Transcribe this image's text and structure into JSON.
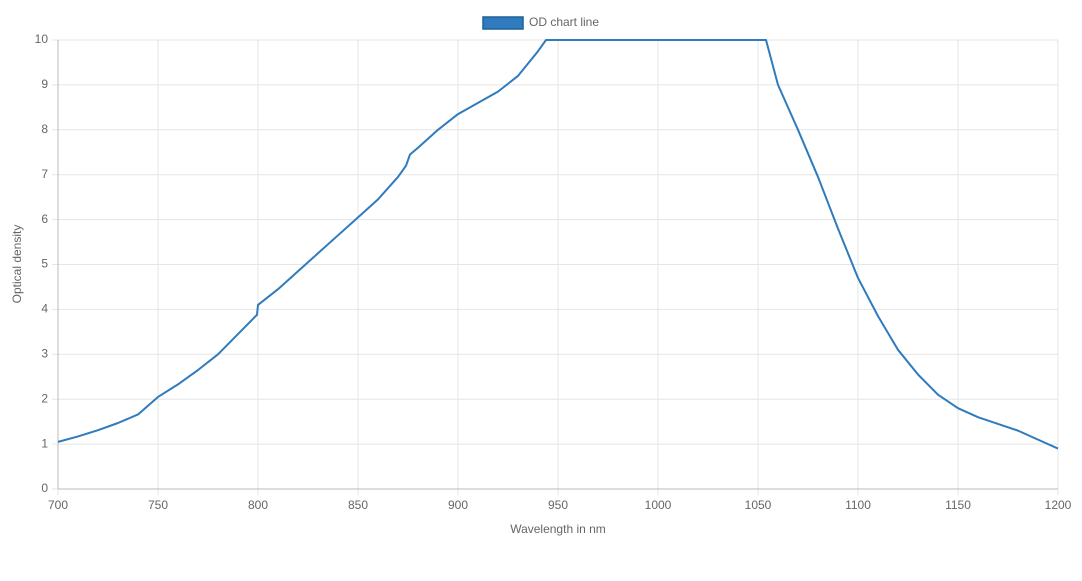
{
  "chart_data": {
    "type": "line",
    "x_label": "Wavelength in nm",
    "y_label": "Optical density",
    "x": [
      700,
      710,
      720,
      730,
      740,
      750,
      760,
      770,
      780,
      790,
      799.5,
      800,
      810,
      820,
      830,
      840,
      850,
      860,
      870,
      874,
      876,
      880,
      890,
      900,
      910,
      920,
      930,
      940,
      944,
      950,
      1000,
      1050,
      1054,
      1060,
      1070,
      1080,
      1090,
      1100,
      1110,
      1120,
      1130,
      1140,
      1150,
      1160,
      1170,
      1180,
      1190,
      1200
    ],
    "series": [
      {
        "name": "OD chart line",
        "color": "#2f7bbd",
        "values": [
          1.05,
          1.17,
          1.31,
          1.47,
          1.66,
          2.05,
          2.33,
          2.65,
          3.0,
          3.45,
          3.88,
          4.1,
          4.45,
          4.85,
          5.25,
          5.65,
          6.05,
          6.45,
          6.95,
          7.2,
          7.45,
          7.6,
          8.0,
          8.35,
          8.6,
          8.85,
          9.2,
          9.75,
          10,
          10,
          10,
          10,
          10,
          9.0,
          8.0,
          6.95,
          5.8,
          4.7,
          3.85,
          3.1,
          2.55,
          2.1,
          1.8,
          1.6,
          1.45,
          1.3,
          1.1,
          0.9
        ]
      }
    ],
    "xlim": [
      700,
      1200
    ],
    "xticks": [
      700,
      750,
      800,
      850,
      900,
      950,
      1000,
      1050,
      1100,
      1150,
      1200
    ],
    "ylim": [
      0,
      10
    ],
    "yticks": [
      0,
      1,
      2,
      3,
      4,
      5,
      6,
      7,
      8,
      9,
      10
    ],
    "grid": true
  }
}
